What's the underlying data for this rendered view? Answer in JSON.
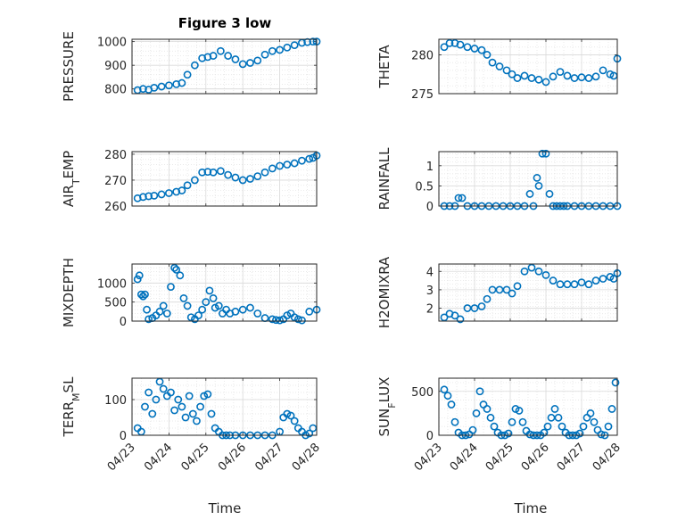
{
  "figure": {
    "title": "Figure 3 low",
    "xlabel": "Time",
    "x_tick_labels": [
      "04/23",
      "04/24",
      "04/25",
      "04/26",
      "04/27",
      "04/28"
    ]
  },
  "colors": {
    "marker": "#0072BD",
    "grid": "#d9d9d9",
    "axis": "#262626"
  },
  "chart_data": [
    {
      "type": "scatter",
      "ylabel": "PRESSURE",
      "ylim": [
        780,
        1010
      ],
      "yticks": [
        800,
        900,
        1000
      ],
      "xlim": [
        "04/23",
        "04/28"
      ],
      "grid": true,
      "x": [
        0.15,
        0.3,
        0.45,
        0.6,
        0.8,
        1.0,
        1.2,
        1.35,
        1.5,
        1.7,
        1.9,
        2.05,
        2.2,
        2.4,
        2.6,
        2.8,
        3.0,
        3.2,
        3.4,
        3.6,
        3.8,
        4.0,
        4.2,
        4.4,
        4.6,
        4.75,
        4.9,
        5.0
      ],
      "y": [
        795,
        800,
        797,
        805,
        810,
        815,
        820,
        825,
        860,
        900,
        930,
        935,
        940,
        960,
        940,
        925,
        905,
        910,
        920,
        945,
        960,
        965,
        975,
        985,
        995,
        998,
        1000,
        1000
      ]
    },
    {
      "type": "scatter",
      "ylabel": "THETA",
      "ylim": [
        275,
        282
      ],
      "yticks": [
        275,
        280
      ],
      "xlim": [
        "04/23",
        "04/28"
      ],
      "grid": true,
      "x": [
        0.15,
        0.3,
        0.45,
        0.6,
        0.8,
        1.0,
        1.2,
        1.35,
        1.5,
        1.7,
        1.9,
        2.05,
        2.2,
        2.4,
        2.6,
        2.8,
        3.0,
        3.2,
        3.4,
        3.6,
        3.8,
        4.0,
        4.2,
        4.4,
        4.6,
        4.8,
        4.9,
        5.0
      ],
      "y": [
        281,
        281.5,
        281.5,
        281.3,
        281,
        280.8,
        280.6,
        280,
        279,
        278.5,
        278,
        277.5,
        277,
        277.3,
        277,
        276.8,
        276.5,
        277.2,
        277.8,
        277.3,
        277,
        277.1,
        277,
        277.2,
        278,
        277.5,
        277.3,
        279.5
      ]
    },
    {
      "type": "scatter",
      "ylabel": "AIR_TEMP",
      "ylim": [
        260,
        281
      ],
      "yticks": [
        260,
        270,
        280
      ],
      "xlim": [
        "04/23",
        "04/28"
      ],
      "grid": true,
      "x": [
        0.15,
        0.3,
        0.45,
        0.6,
        0.8,
        1.0,
        1.2,
        1.35,
        1.5,
        1.7,
        1.9,
        2.05,
        2.2,
        2.4,
        2.6,
        2.8,
        3.0,
        3.2,
        3.4,
        3.6,
        3.8,
        4.0,
        4.2,
        4.4,
        4.6,
        4.8,
        4.9,
        5.0
      ],
      "y": [
        263,
        263.5,
        263.8,
        264,
        264.5,
        265,
        265.5,
        266,
        268,
        270,
        273,
        273.2,
        273,
        273.5,
        272,
        271,
        270,
        270.5,
        271.5,
        273,
        274.5,
        275.5,
        276,
        276.5,
        277.5,
        278.2,
        278.6,
        279.5
      ]
    },
    {
      "type": "scatter",
      "ylabel": "RAINFALL",
      "ylim": [
        0,
        1.35
      ],
      "yticks": [
        0,
        0.5,
        1
      ],
      "xlim": [
        "04/23",
        "04/28"
      ],
      "grid": true,
      "x": [
        0.15,
        0.3,
        0.45,
        0.55,
        0.65,
        0.8,
        1.0,
        1.2,
        1.4,
        1.6,
        1.8,
        2.0,
        2.2,
        2.4,
        2.55,
        2.65,
        2.75,
        2.8,
        2.9,
        3.0,
        3.1,
        3.2,
        3.3,
        3.4,
        3.5,
        3.6,
        3.8,
        4.0,
        4.2,
        4.4,
        4.6,
        4.8,
        5.0
      ],
      "y": [
        0,
        0,
        0,
        0.2,
        0.2,
        0,
        0,
        0,
        0,
        0,
        0,
        0,
        0,
        0,
        0.3,
        0,
        0.7,
        0.5,
        1.3,
        1.3,
        0.3,
        0,
        0,
        0,
        0,
        0,
        0,
        0,
        0,
        0,
        0,
        0,
        0
      ]
    },
    {
      "type": "scatter",
      "ylabel": "MIXDEPTH",
      "ylim": [
        0,
        1500
      ],
      "yticks": [
        0,
        500,
        1000
      ],
      "xlim": [
        "04/23",
        "04/28"
      ],
      "grid": true,
      "x": [
        0.15,
        0.2,
        0.25,
        0.3,
        0.35,
        0.4,
        0.45,
        0.55,
        0.65,
        0.75,
        0.85,
        0.95,
        1.05,
        1.15,
        1.2,
        1.3,
        1.4,
        1.5,
        1.6,
        1.7,
        1.8,
        1.9,
        2.0,
        2.1,
        2.2,
        2.25,
        2.35,
        2.45,
        2.55,
        2.65,
        2.8,
        3.0,
        3.2,
        3.4,
        3.6,
        3.8,
        3.9,
        4.0,
        4.1,
        4.2,
        4.3,
        4.4,
        4.5,
        4.6,
        4.8,
        5.0
      ],
      "y": [
        1100,
        1200,
        700,
        650,
        700,
        300,
        50,
        80,
        150,
        250,
        400,
        200,
        900,
        1400,
        1350,
        1200,
        600,
        400,
        100,
        50,
        150,
        300,
        500,
        800,
        600,
        350,
        400,
        200,
        300,
        200,
        250,
        300,
        350,
        200,
        80,
        50,
        30,
        20,
        50,
        150,
        200,
        100,
        50,
        20,
        250,
        300
      ]
    },
    {
      "type": "scatter",
      "ylabel": "H2OMIXRA",
      "ylim": [
        1.3,
        4.4
      ],
      "yticks": [
        2,
        3,
        4
      ],
      "xlim": [
        "04/23",
        "04/28"
      ],
      "grid": true,
      "x": [
        0.15,
        0.3,
        0.45,
        0.6,
        0.8,
        1.0,
        1.2,
        1.35,
        1.5,
        1.7,
        1.9,
        2.05,
        2.2,
        2.4,
        2.6,
        2.8,
        3.0,
        3.2,
        3.4,
        3.6,
        3.8,
        4.0,
        4.2,
        4.4,
        4.6,
        4.8,
        4.9,
        5.0
      ],
      "y": [
        1.5,
        1.7,
        1.6,
        1.4,
        2.0,
        2.0,
        2.1,
        2.5,
        3.0,
        3.0,
        3.0,
        2.8,
        3.2,
        4.0,
        4.2,
        4.0,
        3.8,
        3.5,
        3.3,
        3.3,
        3.3,
        3.4,
        3.3,
        3.5,
        3.6,
        3.7,
        3.6,
        3.9
      ]
    },
    {
      "type": "scatter",
      "ylabel": "TERR_MSL",
      "ylim": [
        0,
        160
      ],
      "yticks": [
        0,
        100
      ],
      "xlim": [
        "04/23",
        "04/28"
      ],
      "grid": true,
      "x": [
        0.15,
        0.25,
        0.35,
        0.45,
        0.55,
        0.65,
        0.75,
        0.85,
        0.95,
        1.05,
        1.15,
        1.25,
        1.35,
        1.45,
        1.55,
        1.65,
        1.75,
        1.85,
        1.95,
        2.05,
        2.15,
        2.25,
        2.35,
        2.45,
        2.55,
        2.65,
        2.8,
        3.0,
        3.2,
        3.4,
        3.6,
        3.8,
        4.0,
        4.1,
        4.2,
        4.3,
        4.4,
        4.5,
        4.6,
        4.7,
        4.8,
        4.9
      ],
      "y": [
        20,
        10,
        80,
        120,
        60,
        100,
        150,
        130,
        110,
        120,
        70,
        100,
        80,
        50,
        110,
        60,
        40,
        80,
        110,
        115,
        60,
        20,
        10,
        0,
        0,
        0,
        0,
        0,
        0,
        0,
        0,
        0,
        10,
        50,
        60,
        55,
        40,
        20,
        10,
        0,
        5,
        20
      ]
    },
    {
      "type": "scatter",
      "ylabel": "SUN_FLUX",
      "ylim": [
        0,
        650
      ],
      "yticks": [
        0,
        500
      ],
      "xlim": [
        "04/23",
        "04/28"
      ],
      "grid": true,
      "x": [
        0.15,
        0.25,
        0.35,
        0.45,
        0.55,
        0.65,
        0.75,
        0.85,
        0.95,
        1.05,
        1.15,
        1.25,
        1.35,
        1.45,
        1.55,
        1.65,
        1.75,
        1.85,
        1.95,
        2.05,
        2.15,
        2.25,
        2.35,
        2.45,
        2.55,
        2.65,
        2.75,
        2.85,
        2.95,
        3.05,
        3.15,
        3.25,
        3.35,
        3.45,
        3.55,
        3.65,
        3.75,
        3.85,
        3.95,
        4.05,
        4.15,
        4.25,
        4.35,
        4.45,
        4.55,
        4.65,
        4.75,
        4.85,
        4.95
      ],
      "y": [
        520,
        450,
        350,
        150,
        30,
        0,
        0,
        10,
        60,
        250,
        500,
        350,
        300,
        200,
        100,
        30,
        0,
        0,
        20,
        150,
        300,
        280,
        150,
        50,
        10,
        0,
        0,
        0,
        30,
        100,
        200,
        300,
        200,
        100,
        30,
        0,
        0,
        0,
        20,
        100,
        200,
        250,
        150,
        60,
        10,
        0,
        100,
        300,
        600
      ]
    }
  ]
}
